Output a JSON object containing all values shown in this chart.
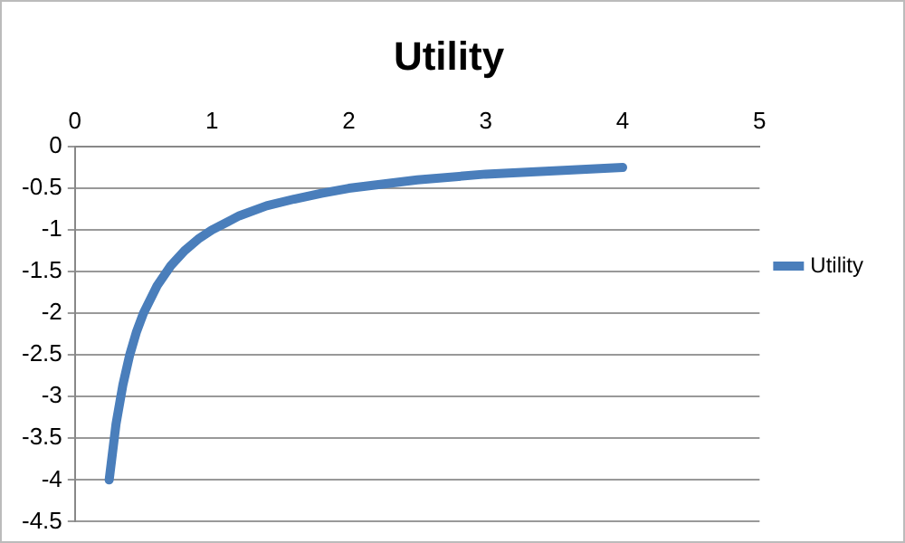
{
  "chart_data": {
    "type": "line",
    "title": "Utility",
    "x": [
      0.25,
      0.3,
      0.35,
      0.4,
      0.45,
      0.5,
      0.6,
      0.7,
      0.8,
      0.9,
      1,
      1.2,
      1.4,
      1.6,
      1.8,
      2,
      2.5,
      3,
      3.5,
      4
    ],
    "series": [
      {
        "name": "Utility",
        "color": "#4a7ebb",
        "values": [
          -4,
          -3.33,
          -2.86,
          -2.5,
          -2.22,
          -2,
          -1.67,
          -1.43,
          -1.25,
          -1.11,
          -1,
          -0.83,
          -0.71,
          -0.63,
          -0.56,
          -0.5,
          -0.4,
          -0.33,
          -0.29,
          -0.25
        ]
      }
    ],
    "xlim": [
      0,
      5
    ],
    "xticks": [
      0,
      1,
      2,
      3,
      4,
      5
    ],
    "ylim": [
      -4.5,
      0
    ],
    "yticks": [
      -4.5,
      -4,
      -3.5,
      -3,
      -2.5,
      -2,
      -1.5,
      -1,
      -0.5,
      0
    ],
    "grid": "y",
    "legend": "right",
    "marker": "none",
    "line_style": "solid"
  }
}
